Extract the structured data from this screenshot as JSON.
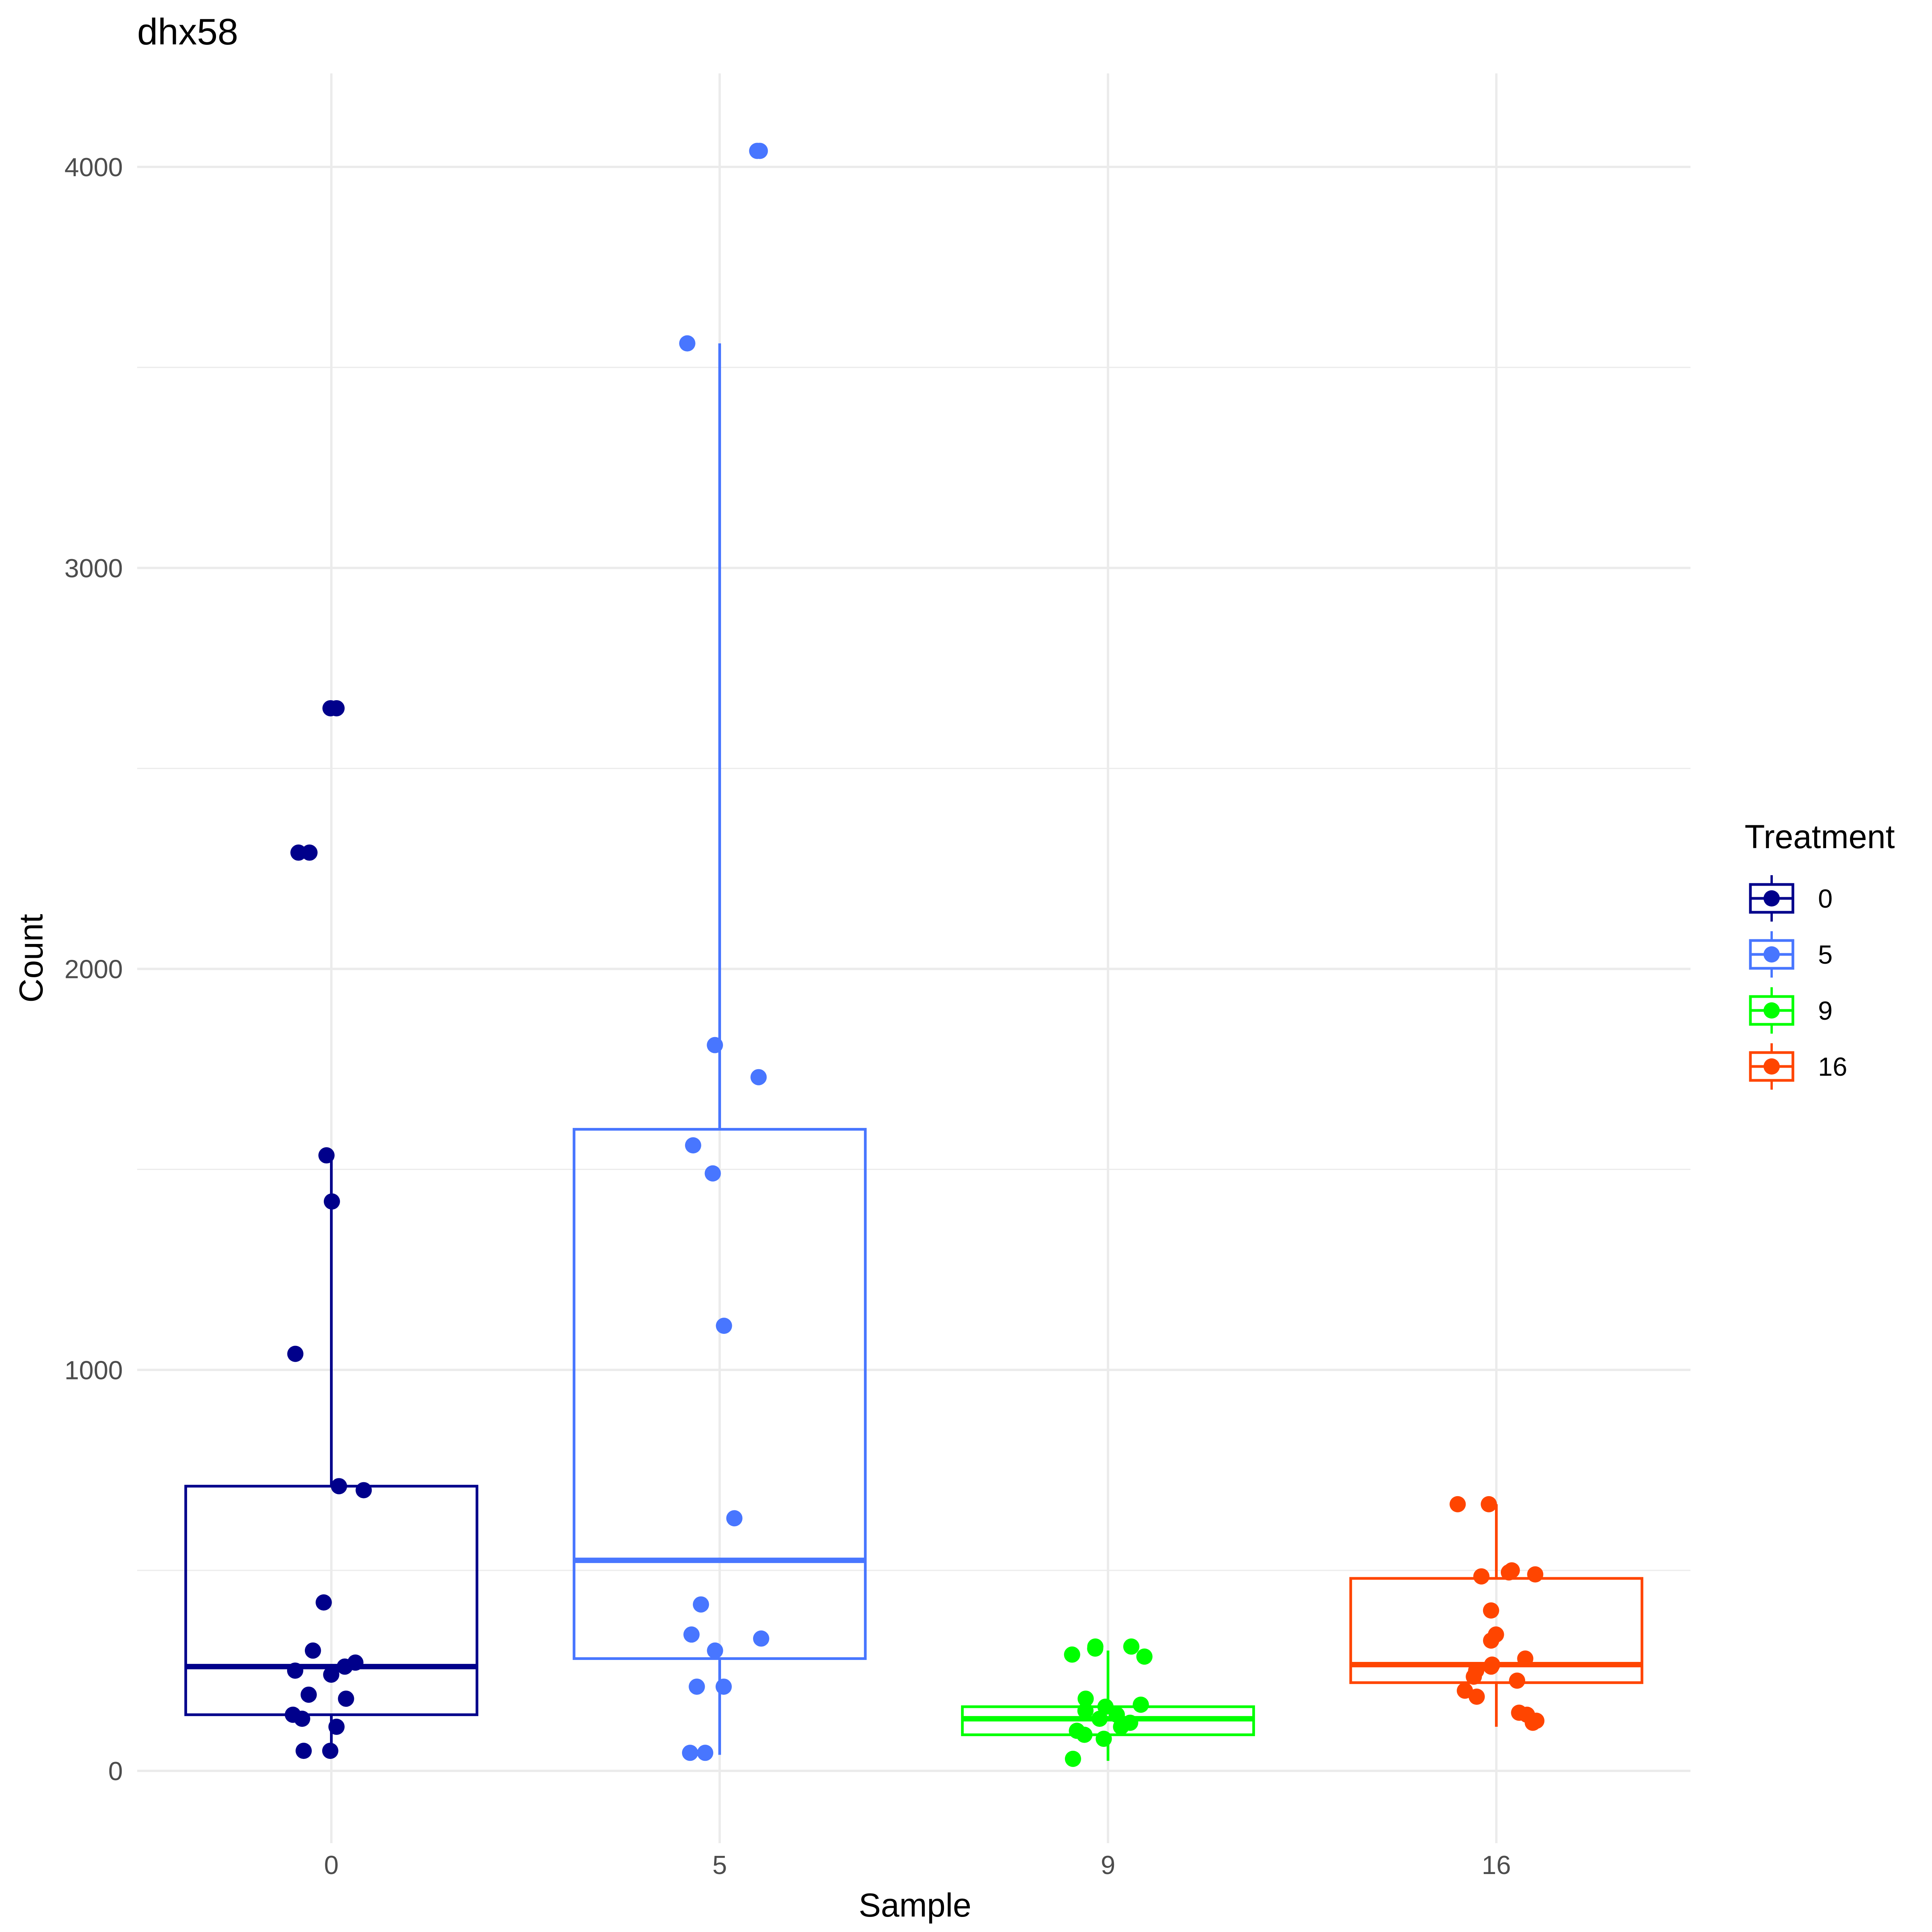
{
  "chart_data": {
    "type": "box",
    "title": "dhx58",
    "xlabel": "Sample",
    "ylabel": "Count",
    "ylim": [
      -200,
      4230
    ],
    "y_ticks": [
      0,
      1000,
      2000,
      3000,
      4000
    ],
    "y_tick_labels": [
      "0",
      "1000",
      "2000",
      "3000",
      "4000"
    ],
    "grid": true,
    "legend": {
      "title": "Treatment",
      "position": "right"
    },
    "categories": [
      "0",
      "5",
      "9",
      "16"
    ],
    "series": [
      {
        "name": "0",
        "color": "#00008B",
        "box": {
          "lower_whisker": 45,
          "q1": 140,
          "median": 260,
          "q3": 710,
          "upper_whisker": 1530
        },
        "points": [
          2650,
          2650,
          2290,
          2290,
          1535,
          1420,
          1040,
          700,
          710,
          420,
          300,
          270,
          260,
          250,
          240,
          190,
          180,
          130,
          110,
          50,
          50,
          140
        ]
      },
      {
        "name": "5",
        "color": "#4876FF",
        "box": {
          "lower_whisker": 40,
          "q1": 280,
          "median": 525,
          "q3": 1600,
          "upper_whisker": 3560
        },
        "points": [
          4040,
          4040,
          3560,
          1810,
          1730,
          1560,
          1490,
          1110,
          630,
          415,
          340,
          330,
          300,
          210,
          210,
          45,
          45
        ]
      },
      {
        "name": "9",
        "color": "#00FF00",
        "box": {
          "lower_whisker": 25,
          "q1": 90,
          "median": 130,
          "q3": 160,
          "upper_whisker": 300
        },
        "points": [
          310,
          310,
          305,
          290,
          285,
          180,
          165,
          160,
          150,
          140,
          130,
          120,
          110,
          100,
          90,
          80,
          30
        ]
      },
      {
        "name": "16",
        "color": "#FF4500",
        "box": {
          "lower_whisker": 110,
          "q1": 220,
          "median": 265,
          "q3": 480,
          "upper_whisker": 665
        },
        "points": [
          665,
          665,
          500,
          495,
          490,
          485,
          400,
          340,
          325,
          280,
          265,
          260,
          250,
          235,
          225,
          200,
          185,
          145,
          140,
          125,
          120
        ]
      }
    ]
  }
}
